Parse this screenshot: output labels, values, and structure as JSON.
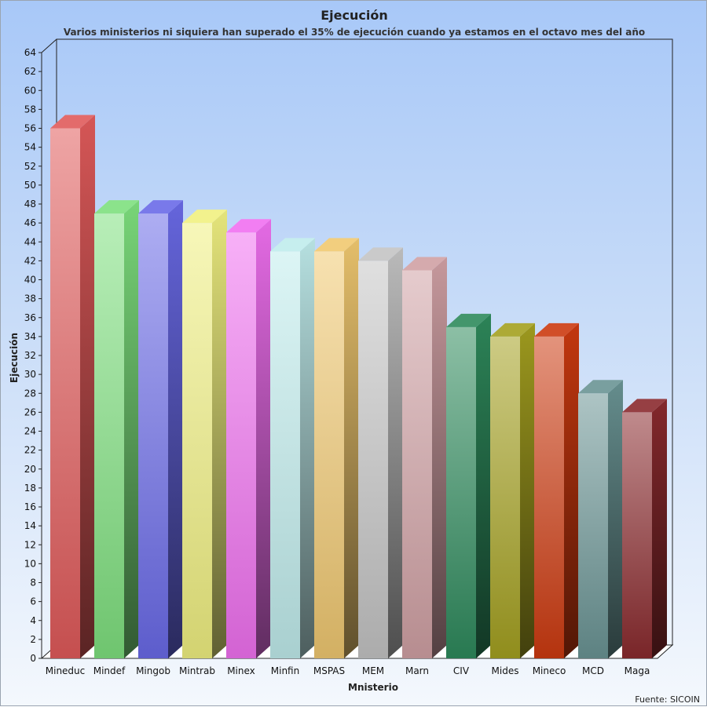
{
  "chart_data": {
    "type": "bar",
    "title": "Ejecución",
    "subtitle": "Varios ministerios ni siquiera han superado el 35% de ejecución cuando ya estamos en el octavo mes del año",
    "xlabel": "Mnisterio",
    "ylabel": "Ejecución",
    "source": "Fuente: SICOIN",
    "ylim": [
      0,
      64
    ],
    "ytick_step": 2,
    "categories": [
      "Mineduc",
      "Mindef",
      "Mingob",
      "Mintrab",
      "Minex",
      "Minfin",
      "MSPAS",
      "MEM",
      "Marn",
      "CIV",
      "Mides",
      "Mineco",
      "MCD",
      "Maga"
    ],
    "values": [
      56,
      47,
      47,
      46,
      45,
      43,
      43,
      42,
      41,
      35,
      34,
      34,
      28,
      26
    ],
    "colors": [
      "#e05a5a",
      "#7ee07e",
      "#6a6ae8",
      "#f0f080",
      "#f070f0",
      "#c0ecec",
      "#f0c870",
      "#c4c4c4",
      "#d0a0a4",
      "#2e8a5c",
      "#a4a020",
      "#cc3a10",
      "#6a9494",
      "#8a2a2e"
    ],
    "grid": false,
    "legend": "none"
  }
}
